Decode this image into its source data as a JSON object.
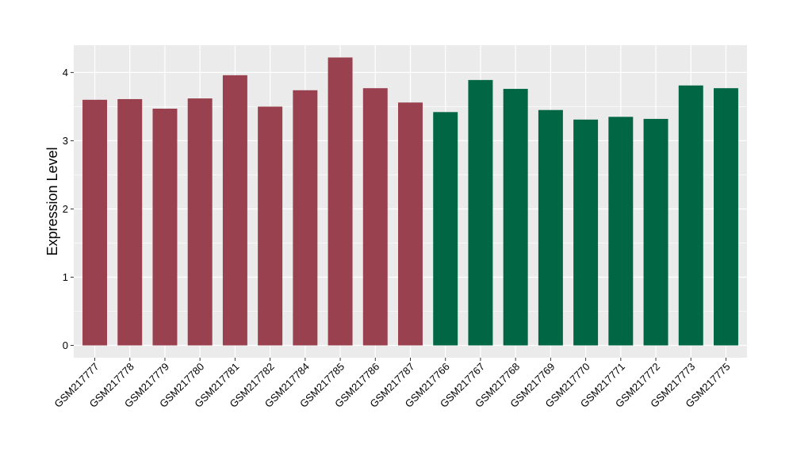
{
  "chart_data": {
    "type": "bar",
    "title": "",
    "xlabel": "",
    "ylabel": "Expression Level",
    "ylim": [
      -0.18,
      4.4
    ],
    "yticks": [
      0,
      1,
      2,
      3,
      4
    ],
    "grid": true,
    "categories": [
      "GSM217777",
      "GSM217778",
      "GSM217779",
      "GSM217780",
      "GSM217781",
      "GSM217782",
      "GSM217784",
      "GSM217785",
      "GSM217786",
      "GSM217787",
      "GSM217766",
      "GSM217767",
      "GSM217768",
      "GSM217769",
      "GSM217770",
      "GSM217771",
      "GSM217772",
      "GSM217773",
      "GSM217775"
    ],
    "values": [
      3.6,
      3.61,
      3.47,
      3.62,
      3.96,
      3.5,
      3.74,
      4.22,
      3.77,
      3.56,
      3.42,
      3.89,
      3.76,
      3.45,
      3.31,
      3.35,
      3.32,
      3.81,
      3.77
    ],
    "bar_colors": [
      "#99414f",
      "#99414f",
      "#99414f",
      "#99414f",
      "#99414f",
      "#99414f",
      "#99414f",
      "#99414f",
      "#99414f",
      "#99414f",
      "#006644",
      "#006644",
      "#006644",
      "#006644",
      "#006644",
      "#006644",
      "#006644",
      "#006644",
      "#006644"
    ],
    "panel_background": "#ebebeb",
    "grid_color": "#ffffff"
  }
}
